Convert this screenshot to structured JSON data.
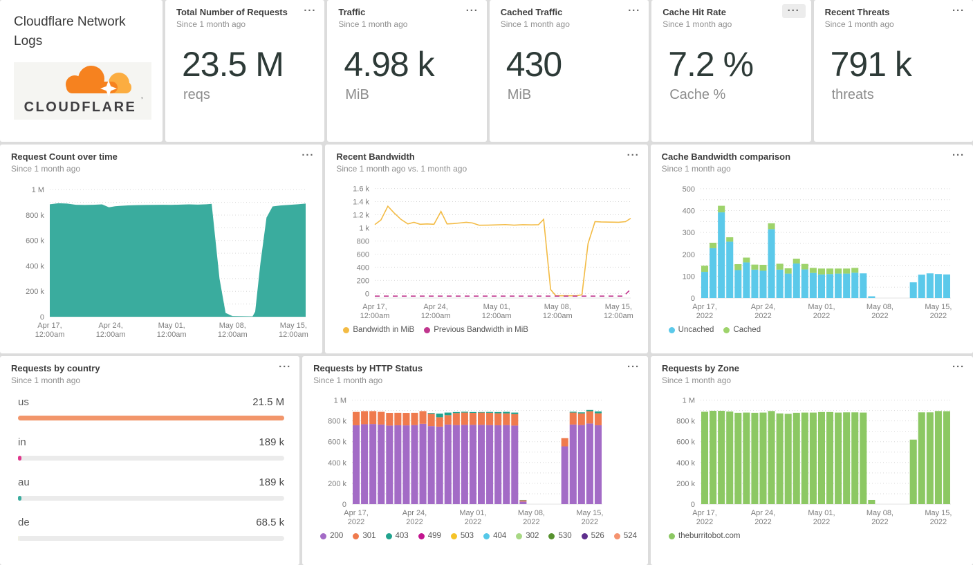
{
  "icons": {
    "menu": "···"
  },
  "intro": {
    "title": "Cloudflare Network Logs",
    "logo_text": "CLOUDFLARE",
    "logo_tm": "’"
  },
  "stats": [
    {
      "title": "Total Number of Requests",
      "subtitle": "Since 1 month ago",
      "value": "23.5 M",
      "unit": "reqs"
    },
    {
      "title": "Traffic",
      "subtitle": "Since 1 month ago",
      "value": "4.98 k",
      "unit": "MiB"
    },
    {
      "title": "Cached Traffic",
      "subtitle": "Since 1 month ago",
      "value": "430",
      "unit": "MiB"
    },
    {
      "title": "Cache Hit Rate",
      "subtitle": "Since 1 month ago",
      "value": "7.2 %",
      "unit": "Cache %"
    },
    {
      "title": "Recent Threats",
      "subtitle": "Since 1 month ago",
      "value": "791 k",
      "unit": "threats"
    }
  ],
  "chart_data": [
    {
      "type": "area",
      "title": "Request Count over time",
      "subtitle": "Since 1 month ago",
      "color": "#3aac9e",
      "y_unit": "requests (values in thousands)",
      "x_unit": "days since Apr 17 2022",
      "xmax": 29.4,
      "ylim": [
        0,
        1050
      ],
      "yticks": [
        {
          "v": 1000,
          "l": "1 M"
        },
        {
          "v": 900
        },
        {
          "v": 800,
          "l": "800 k"
        },
        {
          "v": 700
        },
        {
          "v": 600,
          "l": "600 k"
        },
        {
          "v": 500
        },
        {
          "v": 400,
          "l": "400 k"
        },
        {
          "v": 300
        },
        {
          "v": 200,
          "l": "200 k"
        },
        {
          "v": 100
        },
        {
          "v": 0,
          "l": "0"
        }
      ],
      "xticks": [
        {
          "d": 0,
          "lines": [
            "Apr 17,",
            "12:00am"
          ]
        },
        {
          "d": 7,
          "lines": [
            "Apr 24,",
            "12:00am"
          ]
        },
        {
          "d": 14,
          "lines": [
            "May 01,",
            "12:00am"
          ]
        },
        {
          "d": 21,
          "lines": [
            "May 08,",
            "12:00am"
          ]
        },
        {
          "d": 28,
          "lines": [
            "May 15,",
            "12:00am"
          ]
        }
      ],
      "points": [
        [
          0,
          885
        ],
        [
          1,
          893
        ],
        [
          2,
          890
        ],
        [
          3,
          881
        ],
        [
          4,
          879
        ],
        [
          5,
          881
        ],
        [
          6,
          884
        ],
        [
          6.8,
          861
        ],
        [
          7.5,
          869
        ],
        [
          8,
          872
        ],
        [
          9,
          876
        ],
        [
          10,
          878
        ],
        [
          11,
          879
        ],
        [
          12,
          880
        ],
        [
          13,
          881
        ],
        [
          14,
          880
        ],
        [
          15,
          882
        ],
        [
          16,
          884
        ],
        [
          17,
          882
        ],
        [
          18,
          885
        ],
        [
          18.6,
          888
        ],
        [
          19.5,
          300
        ],
        [
          20.2,
          30
        ],
        [
          21,
          5
        ],
        [
          23.3,
          3
        ],
        [
          23.6,
          40
        ],
        [
          24.2,
          420
        ],
        [
          24.9,
          780
        ],
        [
          25.6,
          868
        ],
        [
          26.5,
          875
        ],
        [
          27.5,
          880
        ],
        [
          28.5,
          885
        ],
        [
          29.4,
          890
        ]
      ]
    },
    {
      "type": "line",
      "title": "Recent Bandwidth",
      "subtitle": "Since 1 month ago vs. 1 month ago",
      "y_unit": "MiB",
      "x_unit": "days since Apr 17 2022",
      "xmax": 29.4,
      "ylim": [
        -70,
        1680
      ],
      "yticks": [
        {
          "v": 1600,
          "l": "1.6 k"
        },
        {
          "v": 1400,
          "l": "1.4 k"
        },
        {
          "v": 1200,
          "l": "1.2 k"
        },
        {
          "v": 1000,
          "l": "1 k"
        },
        {
          "v": 800,
          "l": "800"
        },
        {
          "v": 600,
          "l": "600"
        },
        {
          "v": 400,
          "l": "400"
        },
        {
          "v": 200,
          "l": "200"
        },
        {
          "v": 0,
          "l": "0"
        }
      ],
      "xticks": [
        {
          "d": 0,
          "lines": [
            "Apr 17,",
            "12:00am"
          ]
        },
        {
          "d": 7,
          "lines": [
            "Apr 24,",
            "12:00am"
          ]
        },
        {
          "d": 14,
          "lines": [
            "May 01,",
            "12:00am"
          ]
        },
        {
          "d": 21,
          "lines": [
            "May 08,",
            "12:00am"
          ]
        },
        {
          "d": 28,
          "lines": [
            "May 15,",
            "12:00am"
          ]
        }
      ],
      "series": [
        {
          "name": "Bandwidth in MiB",
          "color": "#F3BB44",
          "points": [
            [
              0,
              1050
            ],
            [
              0.7,
              1120
            ],
            [
              1.5,
              1330
            ],
            [
              2.2,
              1230
            ],
            [
              3,
              1130
            ],
            [
              3.8,
              1060
            ],
            [
              4.5,
              1085
            ],
            [
              5.2,
              1055
            ],
            [
              6,
              1060
            ],
            [
              6.8,
              1055
            ],
            [
              7.6,
              1250
            ],
            [
              8.3,
              1060
            ],
            [
              9,
              1065
            ],
            [
              9.8,
              1075
            ],
            [
              10.5,
              1085
            ],
            [
              11.2,
              1075
            ],
            [
              12,
              1040
            ],
            [
              13,
              1042
            ],
            [
              14,
              1045
            ],
            [
              15,
              1050
            ],
            [
              16,
              1042
            ],
            [
              17,
              1048
            ],
            [
              18,
              1045
            ],
            [
              18.8,
              1048
            ],
            [
              19.4,
              1130
            ],
            [
              20.2,
              60
            ],
            [
              20.8,
              -35
            ],
            [
              23.2,
              -35
            ],
            [
              23.8,
              -20
            ],
            [
              24.5,
              760
            ],
            [
              25.3,
              1095
            ],
            [
              26,
              1090
            ],
            [
              27,
              1088
            ],
            [
              28,
              1085
            ],
            [
              28.8,
              1095
            ],
            [
              29.4,
              1145
            ]
          ]
        },
        {
          "name": "Previous Bandwidth in MiB",
          "color": "#C0368E",
          "dashed": true,
          "note": "approximately 0 for entire period, rendered just below zero line",
          "points": [
            [
              0,
              -40
            ],
            [
              28.6,
              -40
            ],
            [
              29.4,
              65
            ]
          ]
        }
      ],
      "legend": [
        {
          "label": "Bandwidth in MiB",
          "color": "#F3BB44"
        },
        {
          "label": "Previous Bandwidth in MiB",
          "color": "#C0368E"
        }
      ]
    },
    {
      "type": "bars",
      "title": "Cache Bandwidth comparison",
      "subtitle": "Since 1 month ago",
      "y_unit": "MiB",
      "n": 30,
      "rpad": 16,
      "ylim": [
        0,
        525
      ],
      "yticks": [
        {
          "v": 500,
          "l": "500"
        },
        {
          "v": 450
        },
        {
          "v": 400,
          "l": "400"
        },
        {
          "v": 350
        },
        {
          "v": 300,
          "l": "300"
        },
        {
          "v": 250
        },
        {
          "v": 200,
          "l": "200"
        },
        {
          "v": 150
        },
        {
          "v": 100,
          "l": "100"
        },
        {
          "v": 50
        },
        {
          "v": 0,
          "l": "0"
        }
      ],
      "xticks": [
        {
          "d": 0,
          "lines": [
            "Apr 17,",
            "2022"
          ]
        },
        {
          "d": 7,
          "lines": [
            "Apr 24,",
            "2022"
          ]
        },
        {
          "d": 14,
          "lines": [
            "May 01,",
            "2022"
          ]
        },
        {
          "d": 21,
          "lines": [
            "May 08,",
            "2022"
          ]
        },
        {
          "d": 28,
          "lines": [
            "May 15,",
            "2022"
          ]
        }
      ],
      "series": [
        {
          "name": "Uncached",
          "color": "#5BC9EA",
          "values": [
            120,
            228,
            392,
            258,
            128,
            163,
            130,
            125,
            315,
            130,
            112,
            158,
            131,
            115,
            108,
            110,
            112,
            112,
            116,
            113,
            8,
            0,
            0,
            0,
            0,
            72,
            107,
            113,
            110,
            108
          ]
        },
        {
          "name": "Cached",
          "color": "#9ED36B",
          "values": [
            28,
            25,
            30,
            20,
            27,
            22,
            23,
            27,
            27,
            27,
            24,
            22,
            25,
            23,
            27,
            25,
            23,
            23,
            22,
            0,
            0,
            0,
            0,
            0,
            0,
            0,
            0,
            0,
            0,
            0
          ]
        }
      ],
      "legend": [
        {
          "label": "Uncached",
          "color": "#5BC9EA"
        },
        {
          "label": "Cached",
          "color": "#9ED36B"
        }
      ]
    },
    {
      "type": "bar-gauge",
      "title": "Requests by country",
      "subtitle": "Since 1 month ago",
      "rows": [
        {
          "label": "us",
          "value": "21.5 M",
          "pct": 100,
          "color": "#F2966B"
        },
        {
          "label": "in",
          "value": "189 k",
          "pct": 1.3,
          "color": "#E0368C"
        },
        {
          "label": "au",
          "value": "189 k",
          "pct": 1.3,
          "color": "#3AAC9E"
        },
        {
          "label": "de",
          "value": "68.5 k",
          "pct": 0.6,
          "color": "#F0F0E4"
        }
      ]
    },
    {
      "type": "bars",
      "title": "Requests by HTTP Status",
      "subtitle": "Since 1 month ago",
      "y_unit": "requests (values in thousands)",
      "n": 30,
      "rpad": 16,
      "ylim": [
        0,
        1050
      ],
      "yticks": [
        {
          "v": 1000,
          "l": "1 M"
        },
        {
          "v": 900
        },
        {
          "v": 800,
          "l": "800 k"
        },
        {
          "v": 700
        },
        {
          "v": 600,
          "l": "600 k"
        },
        {
          "v": 500
        },
        {
          "v": 400,
          "l": "400 k"
        },
        {
          "v": 300
        },
        {
          "v": 200,
          "l": "200 k"
        },
        {
          "v": 100
        },
        {
          "v": 0,
          "l": "0"
        }
      ],
      "xticks": [
        {
          "d": 0,
          "lines": [
            "Apr 17,",
            "2022"
          ]
        },
        {
          "d": 7,
          "lines": [
            "Apr 24,",
            "2022"
          ]
        },
        {
          "d": 14,
          "lines": [
            "May 01,",
            "2022"
          ]
        },
        {
          "d": 21,
          "lines": [
            "May 08,",
            "2022"
          ]
        },
        {
          "d": 28,
          "lines": [
            "May 15,",
            "2022"
          ]
        }
      ],
      "series": [
        {
          "name": "200",
          "color": "#A36BC6",
          "values": [
            758,
            768,
            770,
            765,
            755,
            758,
            757,
            760,
            772,
            750,
            745,
            765,
            760,
            762,
            762,
            762,
            760,
            758,
            760,
            755,
            25,
            0,
            0,
            0,
            0,
            555,
            765,
            760,
            775,
            758
          ]
        },
        {
          "name": "301",
          "color": "#EF7A4D",
          "values": [
            128,
            126,
            124,
            122,
            122,
            120,
            120,
            118,
            122,
            118,
            90,
            90,
            115,
            118,
            115,
            118,
            118,
            115,
            112,
            110,
            12,
            0,
            0,
            0,
            0,
            80,
            115,
            112,
            118,
            115
          ]
        },
        {
          "name": "403",
          "color": "#21A38E",
          "values": [
            0,
            0,
            0,
            0,
            0,
            0,
            0,
            0,
            0,
            8,
            35,
            25,
            10,
            8,
            8,
            5,
            8,
            12,
            15,
            15,
            3,
            0,
            0,
            0,
            0,
            0,
            8,
            10,
            12,
            18
          ]
        }
      ],
      "legend": [
        {
          "label": "200",
          "color": "#A36BC6"
        },
        {
          "label": "301",
          "color": "#EF7A4D"
        },
        {
          "label": "403",
          "color": "#21A38E"
        },
        {
          "label": "499",
          "color": "#C2158F"
        },
        {
          "label": "503",
          "color": "#F5C328"
        },
        {
          "label": "404",
          "color": "#55C8E8"
        },
        {
          "label": "302",
          "color": "#A8D884"
        },
        {
          "label": "530",
          "color": "#57922F"
        },
        {
          "label": "526",
          "color": "#5E2F8D"
        },
        {
          "label": "524",
          "color": "#F5936F"
        }
      ]
    },
    {
      "type": "bars",
      "title": "Requests by Zone",
      "subtitle": "Since 1 month ago",
      "y_unit": "requests (values in thousands)",
      "n": 30,
      "rpad": 16,
      "ylim": [
        0,
        1050
      ],
      "yticks": [
        {
          "v": 1000,
          "l": "1 M"
        },
        {
          "v": 900
        },
        {
          "v": 800,
          "l": "800 k"
        },
        {
          "v": 700
        },
        {
          "v": 600,
          "l": "600 k"
        },
        {
          "v": 500
        },
        {
          "v": 400,
          "l": "400 k"
        },
        {
          "v": 300
        },
        {
          "v": 200,
          "l": "200 k"
        },
        {
          "v": 100
        },
        {
          "v": 0,
          "l": "0"
        }
      ],
      "xticks": [
        {
          "d": 0,
          "lines": [
            "Apr 17,",
            "2022"
          ]
        },
        {
          "d": 7,
          "lines": [
            "Apr 24,",
            "2022"
          ]
        },
        {
          "d": 14,
          "lines": [
            "May 01,",
            "2022"
          ]
        },
        {
          "d": 21,
          "lines": [
            "May 08,",
            "2022"
          ]
        },
        {
          "d": 28,
          "lines": [
            "May 15,",
            "2022"
          ]
        }
      ],
      "series": [
        {
          "name": "theburritobot.com",
          "color": "#8CC863",
          "values": [
            888,
            897,
            897,
            890,
            878,
            880,
            878,
            880,
            895,
            872,
            868,
            878,
            880,
            880,
            885,
            885,
            880,
            882,
            882,
            880,
            40,
            0,
            0,
            0,
            0,
            620,
            882,
            882,
            895,
            893
          ]
        }
      ],
      "legend": [
        {
          "label": "theburritobot.com",
          "color": "#8CC863"
        }
      ]
    }
  ]
}
